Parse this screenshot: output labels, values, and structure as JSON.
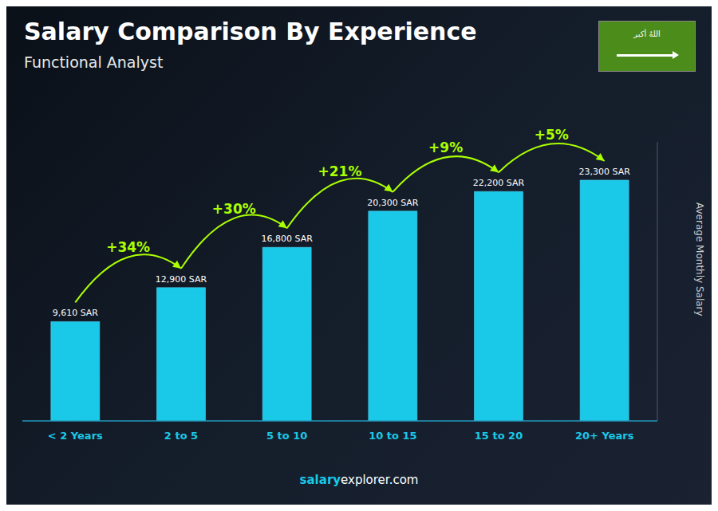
{
  "chart_data": {
    "type": "bar",
    "title": "Salary Comparison By Experience",
    "subtitle": "Functional Analyst",
    "y_label": "Average Monthly Salary",
    "categories": [
      "< 2 Years",
      "2 to 5",
      "5 to 10",
      "10 to 15",
      "15 to 20",
      "20+ Years"
    ],
    "values": [
      9610,
      12900,
      16800,
      20300,
      22200,
      23300
    ],
    "value_labels": [
      "9,610 SAR",
      "12,900 SAR",
      "16,800 SAR",
      "20,300 SAR",
      "22,200 SAR",
      "23,300 SAR"
    ],
    "data_labels": true,
    "annotations": [
      "+34%",
      "+30%",
      "+21%",
      "+9%",
      "+5%"
    ],
    "footer": [
      "salary",
      "explorer.com"
    ],
    "flag_text": "اللهُ أكبر",
    "color": "#1ac8e8",
    "ylim": [
      0,
      27000
    ],
    "tick_labels": "x",
    "grid": false
  }
}
